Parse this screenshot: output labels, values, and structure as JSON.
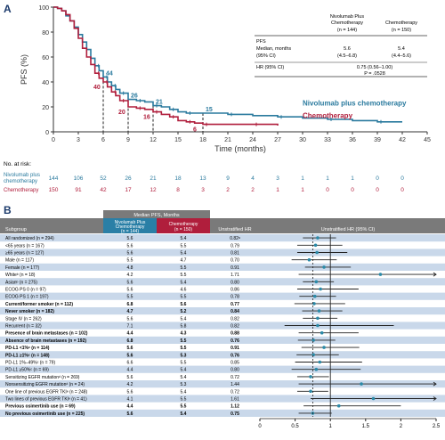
{
  "panel_a": {
    "label": "A",
    "pfs_table": {
      "headers": [
        "",
        "Nivolumab Plus Chemotherapy (n = 144)",
        "Chemotherapy (n = 150)"
      ],
      "rows": [
        [
          "PFS",
          "",
          ""
        ],
        [
          "Median, months (95% CI)",
          "5.6 (4.5–6.8)",
          "5.4 (4.4–5.6)"
        ],
        [
          "HR (95% CI)",
          "0.75 (0.56–1.00)",
          ""
        ],
        [
          "",
          "P = .0528",
          ""
        ]
      ]
    }
  },
  "panel_b": {
    "label": "B",
    "header_group": "Median PFS, Months",
    "col_subgroup": "Subgroup",
    "col_nivo": "Nivolumab Plus Chemotherapy (n = 144)",
    "col_chemo": "Chemotherapy (n = 150)",
    "col_hr": "Unstratified HR",
    "col_forest": "Unstratified HR (95% CI)"
  },
  "colors": {
    "nivo": "#2a7a9e",
    "chemo": "#b01e3c",
    "forest_point": "#2b8aa8",
    "band": "#c9d8ea",
    "header_nivo": "#2a7fa6",
    "header_chemo": "#b01e3c",
    "header_gray": "#7a7a7a"
  },
  "chart_data": [
    {
      "type": "line",
      "ylabel": "PFS (%)",
      "xlabel": "Time (months)",
      "xlim": [
        0,
        45
      ],
      "ylim": [
        0,
        100
      ],
      "x_ticks": [
        0,
        3,
        6,
        9,
        12,
        15,
        18,
        21,
        24,
        27,
        30,
        33,
        36,
        39,
        42,
        45
      ],
      "y_ticks": [
        0,
        20,
        40,
        60,
        80,
        100
      ],
      "series": [
        {
          "name": "Nivolumab plus chemotherapy",
          "points": [
            [
              0,
              100
            ],
            [
              0.5,
              99
            ],
            [
              1,
              97
            ],
            [
              1.5,
              93
            ],
            [
              2,
              89
            ],
            [
              2.5,
              84
            ],
            [
              3,
              78
            ],
            [
              3.5,
              72
            ],
            [
              4,
              66
            ],
            [
              4.5,
              59
            ],
            [
              5,
              53
            ],
            [
              5.5,
              49
            ],
            [
              6,
              44
            ],
            [
              6.5,
              40
            ],
            [
              7,
              37
            ],
            [
              7.5,
              34
            ],
            [
              8,
              31
            ],
            [
              9,
              26
            ],
            [
              10,
              25
            ],
            [
              11,
              24
            ],
            [
              12,
              21
            ],
            [
              13,
              20
            ],
            [
              14,
              18
            ],
            [
              15,
              16
            ],
            [
              16,
              15
            ],
            [
              18,
              15
            ],
            [
              21,
              14
            ],
            [
              24,
              13
            ],
            [
              27,
              12
            ],
            [
              30,
              11
            ],
            [
              33,
              10
            ],
            [
              36,
              9
            ],
            [
              39,
              8
            ],
            [
              42,
              8
            ]
          ]
        },
        {
          "name": "Chemotherapy",
          "points": [
            [
              0,
              100
            ],
            [
              0.5,
              99
            ],
            [
              1,
              97
            ],
            [
              1.5,
              94
            ],
            [
              2,
              89
            ],
            [
              2.5,
              83
            ],
            [
              3,
              75
            ],
            [
              3.5,
              67
            ],
            [
              4,
              60
            ],
            [
              4.5,
              54
            ],
            [
              5,
              47
            ],
            [
              5.5,
              43
            ],
            [
              6,
              40
            ],
            [
              6.5,
              36
            ],
            [
              7,
              32
            ],
            [
              7.5,
              29
            ],
            [
              8,
              25
            ],
            [
              9,
              20
            ],
            [
              10,
              19
            ],
            [
              11,
              18
            ],
            [
              12,
              16
            ],
            [
              13,
              14
            ],
            [
              14,
              12
            ],
            [
              15,
              9
            ],
            [
              16,
              8
            ],
            [
              17,
              7
            ],
            [
              18,
              6
            ],
            [
              21,
              6
            ],
            [
              24,
              6
            ],
            [
              27,
              5
            ]
          ]
        }
      ],
      "annotations": [
        {
          "series": "Nivolumab plus chemotherapy",
          "x": 6,
          "y": 44,
          "text": "44"
        },
        {
          "series": "Nivolumab plus chemotherapy",
          "x": 9,
          "y": 26,
          "text": "26"
        },
        {
          "series": "Nivolumab plus chemotherapy",
          "x": 12,
          "y": 21,
          "text": "21"
        },
        {
          "series": "Nivolumab plus chemotherapy",
          "x": 18,
          "y": 15,
          "text": "15"
        },
        {
          "series": "Chemotherapy",
          "x": 6,
          "y": 40,
          "text": "40"
        },
        {
          "series": "Chemotherapy",
          "x": 9,
          "y": 20,
          "text": "20"
        },
        {
          "series": "Chemotherapy",
          "x": 12,
          "y": 16,
          "text": "16"
        },
        {
          "series": "Chemotherapy",
          "x": 18,
          "y": 6,
          "text": "6"
        }
      ],
      "legend_labels": [
        "Nivolumab plus chemotherapy",
        "Chemotherapy"
      ],
      "at_risk": {
        "title": "No. at risk:",
        "rows": [
          {
            "label": "Nivolumab plus chemotherapy",
            "values": [
              144,
              106,
              52,
              26,
              21,
              18,
              13,
              9,
              4,
              3,
              1,
              1,
              1,
              0,
              0
            ]
          },
          {
            "label": "Chemotherapy",
            "values": [
              150,
              91,
              42,
              17,
              12,
              8,
              3,
              2,
              2,
              1,
              1,
              0,
              0,
              0,
              0
            ]
          }
        ]
      }
    },
    {
      "type": "forest",
      "xlim": [
        0,
        2.5
      ],
      "x_ticks": [
        "0",
        "0.5",
        "1",
        "1.5",
        "2",
        "2.5"
      ],
      "reference_line": 1,
      "overall_hr_line": 0.75,
      "rows": [
        {
          "subgroup": "All randomized (n = 294)",
          "nivo": "5.6",
          "chemo": "5.4",
          "hr": "0.82ᵃ",
          "est": 0.82,
          "lo": 0.61,
          "hi": 1.08,
          "bold": false,
          "band": true
        },
        {
          "subgroup": "<65 years (n = 167)",
          "nivo": "5.6",
          "chemo": "5.5",
          "hr": "0.79",
          "est": 0.79,
          "lo": 0.53,
          "hi": 1.17,
          "bold": false,
          "band": false
        },
        {
          "subgroup": "≥65 years (n = 127)",
          "nivo": "5.6",
          "chemo": "5.4",
          "hr": "0.81",
          "est": 0.81,
          "lo": 0.53,
          "hi": 1.24,
          "bold": false,
          "band": true
        },
        {
          "subgroup": "Male (n = 117)",
          "nivo": "5.5",
          "chemo": "4.7",
          "hr": "0.70",
          "est": 0.7,
          "lo": 0.45,
          "hi": 1.09,
          "bold": false,
          "band": false
        },
        {
          "subgroup": "Female (n = 177)",
          "nivo": "4.8",
          "chemo": "5.5",
          "hr": "0.91",
          "est": 0.91,
          "lo": 0.64,
          "hi": 1.29,
          "bold": false,
          "band": true
        },
        {
          "subgroup": "Whiteᵇ (n = 18)",
          "nivo": "4.2",
          "chemo": "5.5",
          "hr": "1.71",
          "est": 1.71,
          "lo": 0.55,
          "hi": 2.5,
          "bold": false,
          "band": false
        },
        {
          "subgroup": "Asianᵇ (n = 275)",
          "nivo": "5.6",
          "chemo": "5.4",
          "hr": "0.80",
          "est": 0.8,
          "lo": 0.61,
          "hi": 1.05,
          "bold": false,
          "band": true
        },
        {
          "subgroup": "ECOG PS 0 (n = 97)",
          "nivo": "5.6",
          "chemo": "4.6",
          "hr": "0.86",
          "est": 0.86,
          "lo": 0.53,
          "hi": 1.4,
          "bold": false,
          "band": false
        },
        {
          "subgroup": "ECOG PS 1 (n = 197)",
          "nivo": "5.5",
          "chemo": "5.5",
          "hr": "0.78",
          "est": 0.78,
          "lo": 0.56,
          "hi": 1.08,
          "bold": false,
          "band": true
        },
        {
          "subgroup": "Current/former smoker (n = 112)",
          "nivo": "6.8",
          "chemo": "5.6",
          "hr": "0.77",
          "est": 0.77,
          "lo": 0.49,
          "hi": 1.21,
          "bold": true,
          "band": false
        },
        {
          "subgroup": "Never smoker (n = 182)",
          "nivo": "4.7",
          "chemo": "5.2",
          "hr": "0.84",
          "est": 0.84,
          "lo": 0.6,
          "hi": 1.17,
          "bold": true,
          "band": true
        },
        {
          "subgroup": "Stage IV (n = 262)",
          "nivo": "5.6",
          "chemo": "5.4",
          "hr": "0.82",
          "est": 0.82,
          "lo": 0.61,
          "hi": 1.1,
          "bold": false,
          "band": false
        },
        {
          "subgroup": "Recurrent (n = 32)",
          "nivo": "7.1",
          "chemo": "5.8",
          "hr": "0.82",
          "est": 0.82,
          "lo": 0.35,
          "hi": 1.9,
          "bold": false,
          "band": true
        },
        {
          "subgroup": "Presence of brain metastases (n = 102)",
          "nivo": "4.4",
          "chemo": "4.3",
          "hr": "0.88",
          "est": 0.88,
          "lo": 0.55,
          "hi": 1.4,
          "bold": true,
          "band": false
        },
        {
          "subgroup": "Absence of brain metastases (n = 192)",
          "nivo": "6.8",
          "chemo": "5.5",
          "hr": "0.76",
          "est": 0.76,
          "lo": 0.54,
          "hi": 1.07,
          "bold": true,
          "band": true
        },
        {
          "subgroup": "PD-L1 <1%ᶜ (n = 114)",
          "nivo": "5.6",
          "chemo": "5.5",
          "hr": "0.91",
          "est": 0.91,
          "lo": 0.59,
          "hi": 1.41,
          "bold": true,
          "band": false
        },
        {
          "subgroup": "PD-L1 ≥1%ᶜ (n = 148)",
          "nivo": "5.6",
          "chemo": "5.3",
          "hr": "0.76",
          "est": 0.76,
          "lo": 0.52,
          "hi": 1.12,
          "bold": true,
          "band": true
        },
        {
          "subgroup": "PD-L1 1%–49%ᶜ (n = 79)",
          "nivo": "6.6",
          "chemo": "5.5",
          "hr": "0.85",
          "est": 0.85,
          "lo": 0.5,
          "hi": 1.45,
          "bold": false,
          "band": false
        },
        {
          "subgroup": "PD-L1 ≥50%ᶜ (n = 69)",
          "nivo": "4.4",
          "chemo": "5.4",
          "hr": "0.80",
          "est": 0.8,
          "lo": 0.45,
          "hi": 1.43,
          "bold": false,
          "band": true
        },
        {
          "subgroup": "Sensitizing EGFR mutationᵈ (n = 269)",
          "nivo": "5.6",
          "chemo": "5.4",
          "hr": "0.72",
          "est": 0.72,
          "lo": 0.53,
          "hi": 0.98,
          "bold": false,
          "band": false
        },
        {
          "subgroup": "Nonsensitizing EGFR mutationᵈ (n = 24)",
          "nivo": "4.2",
          "chemo": "5.3",
          "hr": "1.44",
          "est": 1.44,
          "lo": 0.55,
          "hi": 2.5,
          "bold": false,
          "band": true
        },
        {
          "subgroup": "One line of previous EGFR TKIᵉ (n = 248)",
          "nivo": "5.6",
          "chemo": "5.4",
          "hr": "0.72",
          "est": 0.72,
          "lo": 0.53,
          "hi": 0.97,
          "bold": false,
          "band": false
        },
        {
          "subgroup": "Two lines of previous EGFR TKIᵉ (n = 41)",
          "nivo": "4.1",
          "chemo": "5.5",
          "hr": "1.61",
          "est": 1.61,
          "lo": 0.72,
          "hi": 2.5,
          "bold": false,
          "band": true
        },
        {
          "subgroup": "Previous osimertinib use (n = 69)",
          "nivo": "4.4",
          "chemo": "5.5",
          "hr": "1.12",
          "est": 1.12,
          "lo": 0.62,
          "hi": 2.0,
          "bold": true,
          "band": false
        },
        {
          "subgroup": "No previous osimertinib use (n = 225)",
          "nivo": "5.6",
          "chemo": "5.4",
          "hr": "0.75",
          "est": 0.75,
          "lo": 0.55,
          "hi": 1.02,
          "bold": true,
          "band": true
        }
      ]
    }
  ]
}
